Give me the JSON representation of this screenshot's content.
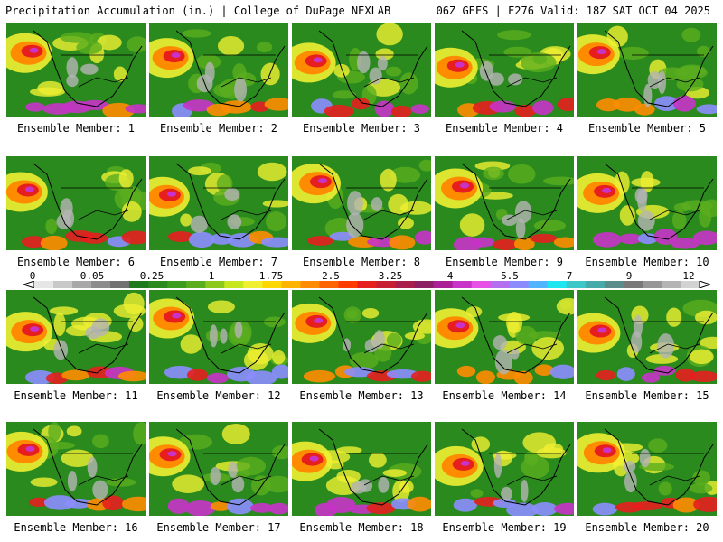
{
  "header": {
    "left_title": "Precipitation Accumulation (in.) | College of DuPage NEXLAB",
    "right_title": "06Z GEFS | F276 Valid: 18Z SAT OCT 04 2025"
  },
  "panels": [
    {
      "label": "Ensemble Member: 1"
    },
    {
      "label": "Ensemble Member: 2"
    },
    {
      "label": "Ensemble Member: 3"
    },
    {
      "label": "Ensemble Member: 4"
    },
    {
      "label": "Ensemble Member: 5"
    },
    {
      "label": "Ensemble Member: 6"
    },
    {
      "label": "Ensemble Member: 7"
    },
    {
      "label": "Ensemble Member: 8"
    },
    {
      "label": "Ensemble Member: 9"
    },
    {
      "label": "Ensemble Member: 10"
    },
    {
      "label": "Ensemble Member: 11"
    },
    {
      "label": "Ensemble Member: 12"
    },
    {
      "label": "Ensemble Member: 13"
    },
    {
      "label": "Ensemble Member: 14"
    },
    {
      "label": "Ensemble Member: 15"
    },
    {
      "label": "Ensemble Member: 16"
    },
    {
      "label": "Ensemble Member: 17"
    },
    {
      "label": "Ensemble Member: 18"
    },
    {
      "label": "Ensemble Member: 19"
    },
    {
      "label": "Ensemble Member: 20"
    }
  ],
  "legend": {
    "tick_labels": [
      "0",
      "0.05",
      "0.25",
      "1",
      "1.75",
      "2.5",
      "3.25",
      "4",
      "5.5",
      "7",
      "9",
      "12"
    ],
    "colors": [
      "#e6e6e6",
      "#c8c8c8",
      "#a8a8a8",
      "#8c8c8c",
      "#707070",
      "#1e7a1e",
      "#2a8a1e",
      "#3c9c1e",
      "#5aae1e",
      "#8cc81e",
      "#c8e61e",
      "#f0f032",
      "#ffd700",
      "#ffb400",
      "#ff8c00",
      "#ff6400",
      "#ff3c00",
      "#e61e1e",
      "#c81e32",
      "#aa1e4b",
      "#8c1e64",
      "#aa1e96",
      "#c832c8",
      "#e650e6",
      "#b46ef0",
      "#8c8cff",
      "#50b4ff",
      "#1ee6f0",
      "#3cc8c8",
      "#46aaaa",
      "#5a8c8c",
      "#787878",
      "#969696",
      "#b4b4b4",
      "#d2d2d2"
    ]
  },
  "map_colors": {
    "base_green": "#2a8a1e",
    "light_green": "#5aae1e",
    "yellow": "#f0f032",
    "orange": "#ff8c00",
    "red": "#e61e1e",
    "magenta": "#c832c8",
    "purple": "#8c8cff",
    "gray": "#b4b4b4"
  }
}
